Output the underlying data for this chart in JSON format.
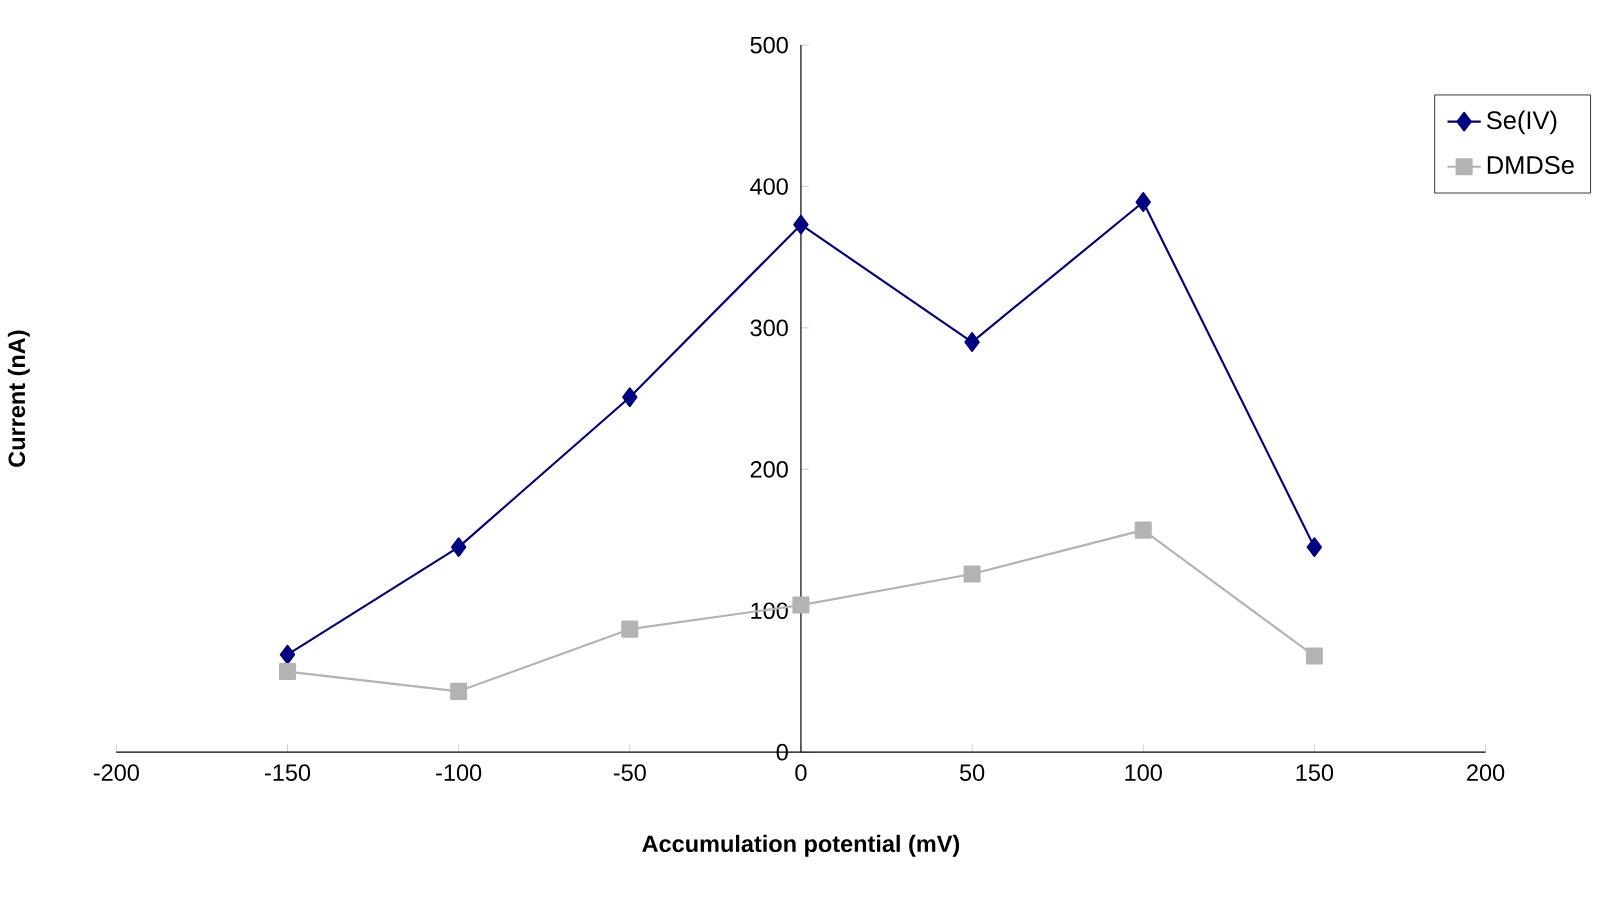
{
  "chart_data": {
    "type": "line",
    "xlabel": "Accumulation potential (mV)",
    "ylabel": "Current (nA)",
    "x": [
      -150,
      -100,
      -50,
      0,
      50,
      100,
      150
    ],
    "series": [
      {
        "name": "Se(IV)",
        "color": "#000080",
        "marker": "diamond",
        "values": [
          69,
          145,
          251,
          373,
          290,
          389,
          145
        ]
      },
      {
        "name": "DMDSe",
        "color": "#b3b3b3",
        "marker": "square",
        "values": [
          57,
          43,
          87,
          104,
          126,
          157,
          68
        ]
      }
    ],
    "xlim": [
      -200,
      200
    ],
    "ylim": [
      0,
      500
    ],
    "xticks": [
      -200,
      -150,
      -100,
      -50,
      0,
      50,
      100,
      150,
      200
    ],
    "yticks": [
      0,
      100,
      200,
      300,
      400,
      500
    ],
    "grid": false,
    "legend": "top right"
  }
}
